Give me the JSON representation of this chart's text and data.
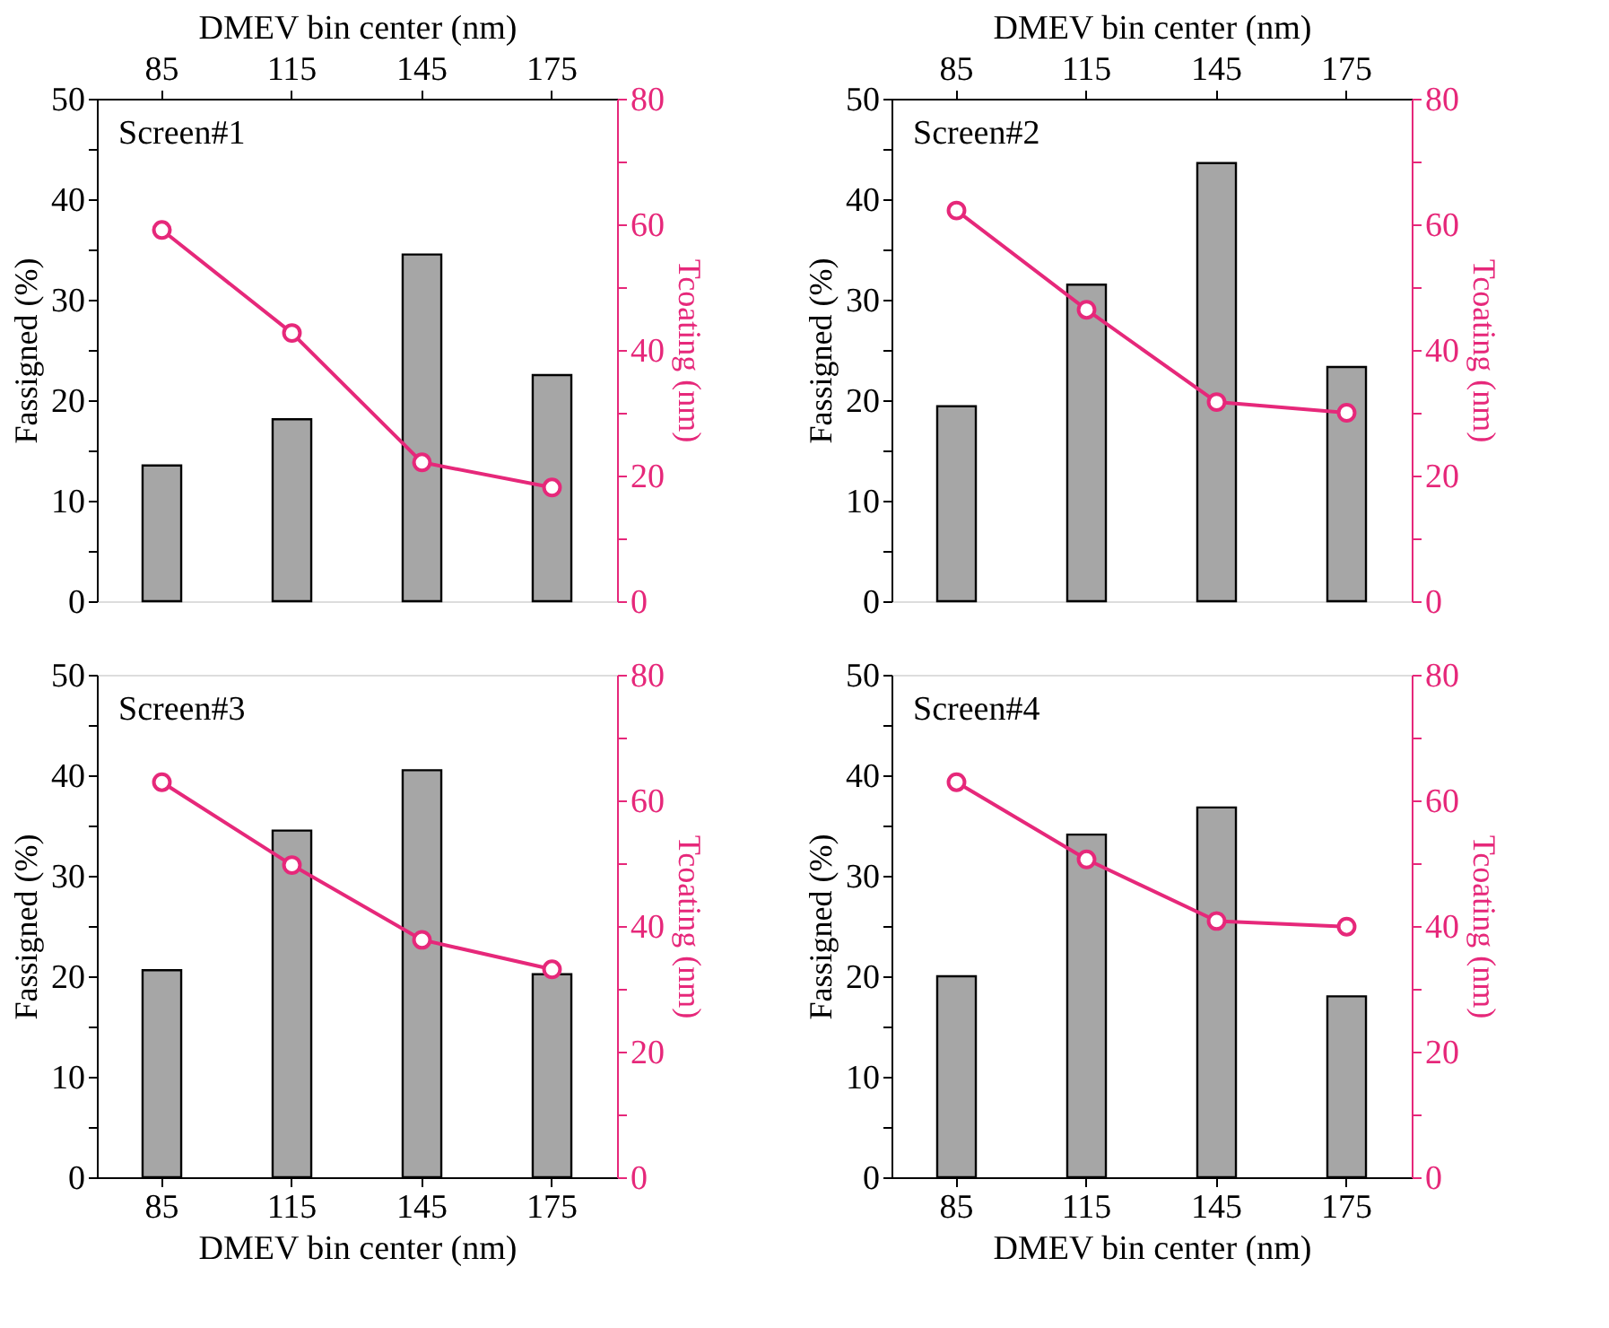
{
  "chart_data": [
    {
      "type": "bar",
      "x2label": "DMEV bin center (nm)",
      "ylabel": "Fassigned (%)",
      "y2label": "Tcoating (nm)",
      "annotations": [
        "Screen#1"
      ],
      "categories": [
        "85",
        "115",
        "145",
        "175"
      ],
      "series": [
        {
          "color": "#a6a6a6",
          "values": [
            13.5,
            18.1,
            34.5,
            22.5
          ]
        },
        {
          "type": "line",
          "axis": "y2",
          "color": "#e6287a",
          "values": [
            59.1,
            42.7,
            22.1,
            18.1
          ]
        }
      ],
      "ylim": [
        0,
        50
      ],
      "yticks": [
        0,
        {
          "value": 5,
          "label": null
        },
        10,
        {
          "value": 15,
          "label": null
        },
        20,
        {
          "value": 25,
          "label": null
        },
        30,
        {
          "value": 35,
          "label": null
        },
        40,
        {
          "value": 45,
          "label": null
        },
        50
      ],
      "y2lim": [
        0,
        80
      ],
      "y2ticks": [
        0,
        {
          "value": 10,
          "label": null
        },
        20,
        {
          "value": 30,
          "label": null
        },
        40,
        {
          "value": 50,
          "label": null
        },
        60,
        {
          "value": 70,
          "label": null
        },
        80
      ],
      "marker": "circle",
      "grid": false
    },
    {
      "type": "bar",
      "x2label": "DMEV bin center (nm)",
      "ylabel": "Fassigned (%)",
      "y2label": "Tcoating (nm)",
      "annotations": [
        "Screen#2"
      ],
      "categories": [
        "85",
        "115",
        "145",
        "175"
      ],
      "series": [
        {
          "color": "#a6a6a6",
          "values": [
            19.4,
            31.5,
            43.6,
            23.3
          ]
        },
        {
          "type": "line",
          "axis": "y2",
          "color": "#e6287a",
          "values": [
            62.2,
            46.4,
            31.7,
            30.0
          ]
        }
      ],
      "ylim": [
        0,
        50
      ],
      "yticks": [
        0,
        {
          "value": 5,
          "label": null
        },
        10,
        {
          "value": 15,
          "label": null
        },
        20,
        {
          "value": 25,
          "label": null
        },
        30,
        {
          "value": 35,
          "label": null
        },
        40,
        {
          "value": 45,
          "label": null
        },
        50
      ],
      "y2lim": [
        0,
        80
      ],
      "y2ticks": [
        0,
        {
          "value": 10,
          "label": null
        },
        20,
        {
          "value": 30,
          "label": null
        },
        40,
        {
          "value": 50,
          "label": null
        },
        60,
        {
          "value": 70,
          "label": null
        },
        80
      ],
      "marker": "circle",
      "grid": false
    },
    {
      "type": "bar",
      "xlabel": "DMEV bin center (nm)",
      "ylabel": "Fassigned (%)",
      "y2label": "Tcoating (nm)",
      "annotations": [
        "Screen#3"
      ],
      "categories": [
        "85",
        "115",
        "145",
        "175"
      ],
      "series": [
        {
          "color": "#a6a6a6",
          "values": [
            20.6,
            34.5,
            40.5,
            20.2
          ]
        },
        {
          "type": "line",
          "axis": "y2",
          "color": "#e6287a",
          "values": [
            62.9,
            49.7,
            37.8,
            33.1
          ]
        }
      ],
      "ylim": [
        0,
        50
      ],
      "yticks": [
        0,
        {
          "value": 5,
          "label": null
        },
        10,
        {
          "value": 15,
          "label": null
        },
        20,
        {
          "value": 25,
          "label": null
        },
        30,
        {
          "value": 35,
          "label": null
        },
        40,
        {
          "value": 45,
          "label": null
        },
        50
      ],
      "y2lim": [
        0,
        80
      ],
      "y2ticks": [
        0,
        {
          "value": 10,
          "label": null
        },
        20,
        {
          "value": 30,
          "label": null
        },
        40,
        {
          "value": 50,
          "label": null
        },
        60,
        {
          "value": 70,
          "label": null
        },
        80
      ],
      "marker": "circle",
      "grid": false
    },
    {
      "type": "bar",
      "xlabel": "DMEV bin center (nm)",
      "ylabel": "Fassigned (%)",
      "y2label": "Tcoating (nm)",
      "annotations": [
        "Screen#4"
      ],
      "categories": [
        "85",
        "115",
        "145",
        "175"
      ],
      "series": [
        {
          "color": "#a6a6a6",
          "values": [
            20.0,
            34.1,
            36.8,
            18.0
          ]
        },
        {
          "type": "line",
          "axis": "y2",
          "color": "#e6287a",
          "values": [
            62.9,
            50.6,
            40.8,
            39.9
          ]
        }
      ],
      "ylim": [
        0,
        50
      ],
      "yticks": [
        0,
        {
          "value": 5,
          "label": null
        },
        10,
        {
          "value": 15,
          "label": null
        },
        20,
        {
          "value": 25,
          "label": null
        },
        30,
        {
          "value": 35,
          "label": null
        },
        40,
        {
          "value": 45,
          "label": null
        },
        50
      ],
      "y2lim": [
        0,
        80
      ],
      "y2ticks": [
        0,
        {
          "value": 10,
          "label": null
        },
        20,
        {
          "value": 30,
          "label": null
        },
        40,
        {
          "value": 50,
          "label": null
        },
        60,
        {
          "value": 70,
          "label": null
        },
        80
      ],
      "marker": "circle",
      "grid": false
    }
  ]
}
